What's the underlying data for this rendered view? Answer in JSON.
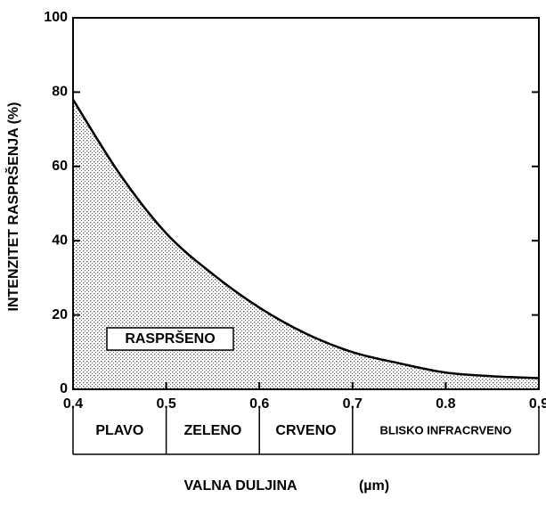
{
  "chart_data": {
    "type": "area",
    "y_label": "INTENZITET  RASPRŠENJA  (%)",
    "x_label": "VALNA DULJINA",
    "x_unit": "(µm)",
    "annotation": "RASPRŠENO",
    "x": [
      0.4,
      0.45,
      0.5,
      0.55,
      0.6,
      0.65,
      0.7,
      0.75,
      0.8,
      0.85,
      0.9
    ],
    "values": [
      78,
      58,
      42,
      31,
      22,
      15,
      10,
      7,
      4.5,
      3.5,
      3
    ],
    "color": "#000000",
    "xlim": [
      0.4,
      0.9
    ],
    "ylim": [
      0,
      100
    ],
    "xticks": [
      0.4,
      0.5,
      0.6,
      0.7,
      0.8,
      0.9
    ],
    "yticks": [
      0,
      20,
      40,
      60,
      80,
      100
    ],
    "bands": [
      {
        "label": "PLAVO",
        "start": 0.4,
        "end": 0.5
      },
      {
        "label": "ZELENO",
        "start": 0.5,
        "end": 0.6
      },
      {
        "label": "CRVENO",
        "start": 0.6,
        "end": 0.7
      },
      {
        "label": "BLISKO INFRACRVENO",
        "start": 0.7,
        "end": 0.9
      }
    ]
  }
}
